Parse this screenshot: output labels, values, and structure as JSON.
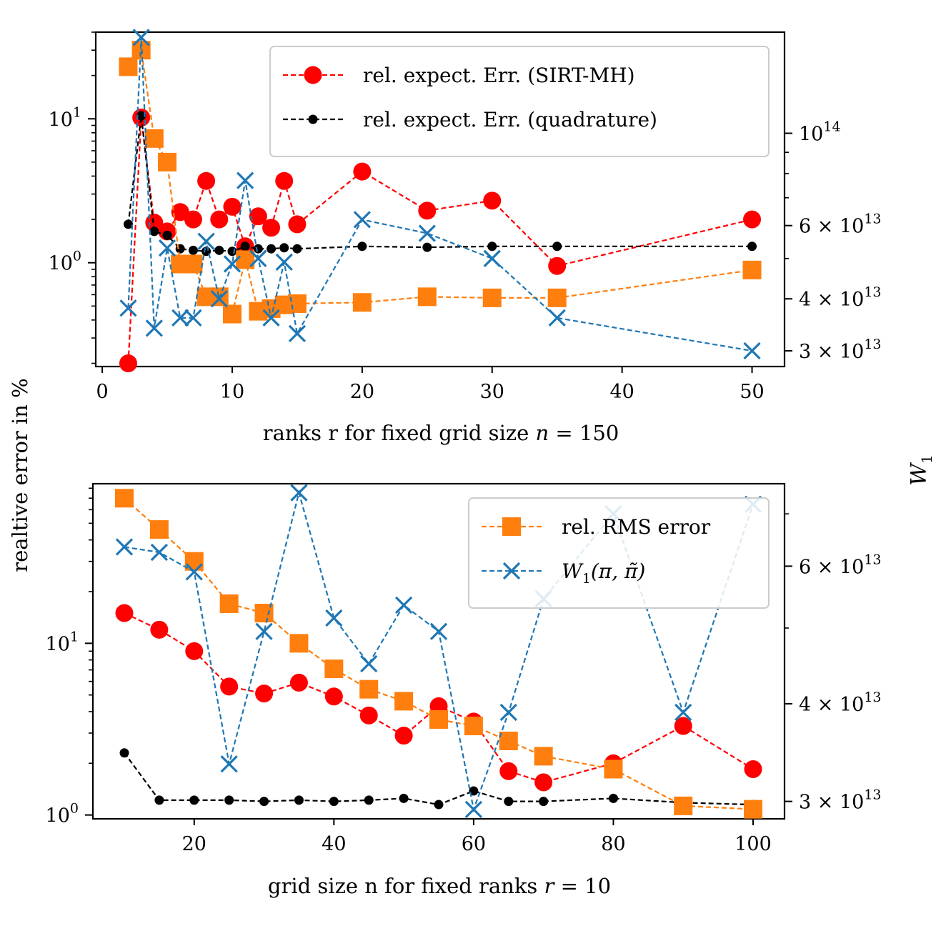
{
  "figure": {
    "shared_ylabel": "realtive error in %",
    "right_ylabel": "W",
    "right_ylabel_sub": "1"
  },
  "colors": {
    "sirt": "#ff0000",
    "quad": "#000000",
    "rms": "#ff7f0e",
    "w1": "#1f77b4"
  },
  "chart_data": [
    {
      "type": "line",
      "id": "top",
      "xlabel": "ranks r for fixed grid size n = 150",
      "ylabel": "realtive error in %",
      "y_scale": "log",
      "y2_scale": "log",
      "xlim": [
        -0.5,
        52.5
      ],
      "ylim": [
        0.19,
        40
      ],
      "y2lim": [
        27500000000000.0,
        175000000000000.0
      ],
      "x_ticks": [
        0,
        10,
        20,
        30,
        40,
        50
      ],
      "y_ticks": [
        {
          "value": 1,
          "base": "10",
          "exp": "0"
        },
        {
          "value": 10,
          "base": "10",
          "exp": "1"
        }
      ],
      "y2_ticks": [
        {
          "value": 30000000000000.0,
          "mant": "3 × 10",
          "exp": "13"
        },
        {
          "value": 40000000000000.0,
          "mant": "4 × 10",
          "exp": "13"
        },
        {
          "value": 60000000000000.0,
          "mant": "6 × 10",
          "exp": "13"
        },
        {
          "value": 100000000000000.0,
          "mant": "10",
          "exp": "14"
        }
      ],
      "legend": {
        "placement": "top-right",
        "entries": [
          {
            "series": "sirt",
            "label": "rel. expect. Err. (SIRT-MH)"
          },
          {
            "series": "quad",
            "label": "rel. expect. Err. (quadrature)"
          }
        ]
      },
      "x": [
        2,
        3,
        4,
        5,
        6,
        7,
        8,
        9,
        10,
        11,
        12,
        13,
        14,
        15,
        20,
        25,
        30,
        35,
        50
      ],
      "series": [
        {
          "key": "sirt",
          "name": "rel. expect. Err. (SIRT-MH)",
          "axis": "left",
          "marker": "circle",
          "values": [
            0.2,
            10.2,
            1.9,
            1.65,
            2.25,
            2.0,
            3.7,
            2.0,
            2.45,
            1.3,
            2.1,
            1.75,
            3.7,
            1.85,
            4.3,
            2.3,
            2.7,
            0.95,
            2.0
          ]
        },
        {
          "key": "quad",
          "name": "rel. expect. Err. (quadrature)",
          "axis": "left",
          "marker": "dot",
          "values": [
            1.85,
            10.5,
            1.65,
            1.55,
            1.25,
            1.22,
            1.2,
            1.22,
            1.2,
            1.3,
            1.25,
            1.25,
            1.27,
            1.25,
            1.3,
            1.28,
            1.3,
            1.3,
            1.3
          ]
        },
        {
          "key": "rms",
          "name": "rel. RMS error",
          "axis": "left",
          "marker": "square",
          "values": [
            23,
            30,
            7.3,
            5.0,
            0.98,
            0.98,
            0.58,
            0.58,
            0.44,
            1.05,
            0.46,
            0.48,
            0.51,
            0.52,
            0.53,
            0.58,
            0.57,
            0.57,
            0.89
          ]
        },
        {
          "key": "w1",
          "name": "W1(π, π̃)",
          "axis": "right",
          "marker": "x",
          "values": [
            38000000000000.0,
            170000000000000.0,
            34000000000000.0,
            53000000000000.0,
            36000000000000.0,
            36000000000000.0,
            55000000000000.0,
            40000000000000.0,
            48500000000000.0,
            77000000000000.0,
            50000000000000.0,
            36000000000000.0,
            49000000000000.0,
            33000000000000.0,
            62000000000000.0,
            57500000000000.0,
            50000000000000.0,
            36000000000000.0,
            30000000000000.0
          ]
        }
      ]
    },
    {
      "type": "line",
      "id": "bottom",
      "xlabel": "grid size n for fixed ranks r = 10",
      "ylabel": "realtive error in %",
      "y_scale": "log",
      "y2_scale": "log",
      "xlim": [
        5.5,
        104.5
      ],
      "ylim": [
        0.95,
        85
      ],
      "y2lim": [
        28500000000000.0,
        76500000000000.0
      ],
      "x_ticks": [
        20,
        40,
        60,
        80,
        100
      ],
      "y_ticks": [
        {
          "value": 1,
          "base": "10",
          "exp": "0"
        },
        {
          "value": 10,
          "base": "10",
          "exp": "1"
        }
      ],
      "y2_ticks": [
        {
          "value": 30000000000000.0,
          "mant": "3 × 10",
          "exp": "13"
        },
        {
          "value": 40000000000000.0,
          "mant": "4 × 10",
          "exp": "13"
        },
        {
          "value": 60000000000000.0,
          "mant": "6 × 10",
          "exp": "13"
        }
      ],
      "legend": {
        "placement": "top-right",
        "entries": [
          {
            "series": "rms",
            "label": "rel. RMS error"
          },
          {
            "series": "w1",
            "label": "W1(π, π̃)"
          }
        ]
      },
      "x": [
        10,
        15,
        20,
        25,
        30,
        35,
        40,
        45,
        50,
        55,
        60,
        65,
        70,
        80,
        90,
        100
      ],
      "series": [
        {
          "key": "sirt",
          "name": "rel. expect. Err. (SIRT-MH)",
          "axis": "left",
          "marker": "circle",
          "values": [
            15,
            12,
            9,
            5.6,
            5.1,
            5.9,
            4.9,
            3.8,
            2.9,
            4.3,
            3.5,
            1.8,
            1.55,
            2.0,
            3.3,
            1.85
          ]
        },
        {
          "key": "quad",
          "name": "rel. expect. Err. (quadrature)",
          "axis": "left",
          "marker": "dot",
          "values": [
            2.3,
            1.22,
            1.22,
            1.22,
            1.2,
            1.22,
            1.2,
            1.22,
            1.25,
            1.15,
            1.38,
            1.2,
            1.2,
            1.25,
            1.18,
            1.15
          ]
        },
        {
          "key": "rms",
          "name": "rel. RMS error",
          "axis": "left",
          "marker": "square",
          "values": [
            70,
            46,
            30,
            17,
            15,
            10,
            7.1,
            5.4,
            4.6,
            3.6,
            3.3,
            2.7,
            2.2,
            1.85,
            1.13,
            1.08
          ]
        },
        {
          "key": "w1",
          "name": "W1(π, π̃)",
          "axis": "right",
          "marker": "x",
          "values": [
            63500000000000.0,
            62500000000000.0,
            59000000000000.0,
            33500000000000.0,
            49500000000000.0,
            74500000000000.0,
            51500000000000.0,
            45000000000000.0,
            53500000000000.0,
            49500000000000.0,
            29300000000000.0,
            39000000000000.0,
            54500000000000.0,
            70000000000000.0,
            39000000000000.0,
            72000000000000.0
          ]
        }
      ]
    }
  ]
}
